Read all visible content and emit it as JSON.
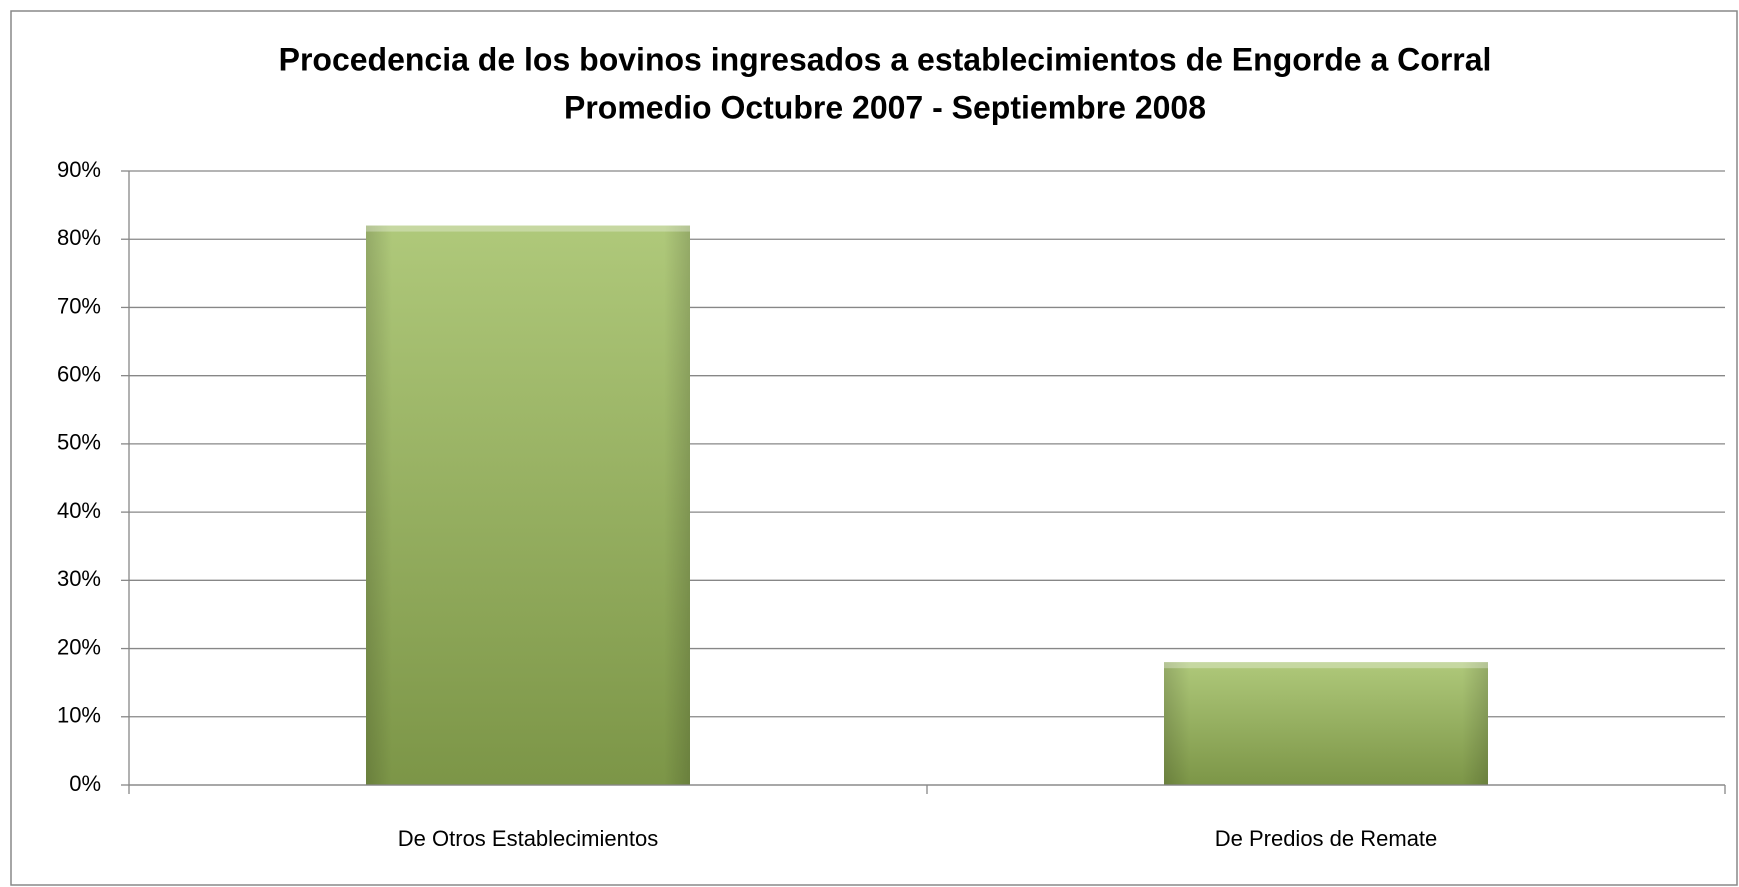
{
  "chart_data": {
    "type": "bar",
    "title": "Procedencia de los bovinos ingresados a establecimientos de Engorde a Corral",
    "subtitle": "Promedio Octubre 2007 - Septiembre 2008",
    "categories": [
      "De Otros Establecimientos",
      "De Predios de Remate"
    ],
    "values": [
      82,
      18
    ],
    "color": "#9bbb59",
    "ylim": [
      0,
      90
    ],
    "yticks": [
      {
        "value": 0,
        "label": "0%"
      },
      {
        "value": 10,
        "label": "10%"
      },
      {
        "value": 20,
        "label": "20%"
      },
      {
        "value": 30,
        "label": "30%"
      },
      {
        "value": 40,
        "label": "40%"
      },
      {
        "value": 50,
        "label": "50%"
      },
      {
        "value": 60,
        "label": "60%"
      },
      {
        "value": 70,
        "label": "70%"
      },
      {
        "value": 80,
        "label": "80%"
      },
      {
        "value": 90,
        "label": "90%"
      }
    ],
    "grid": true
  }
}
